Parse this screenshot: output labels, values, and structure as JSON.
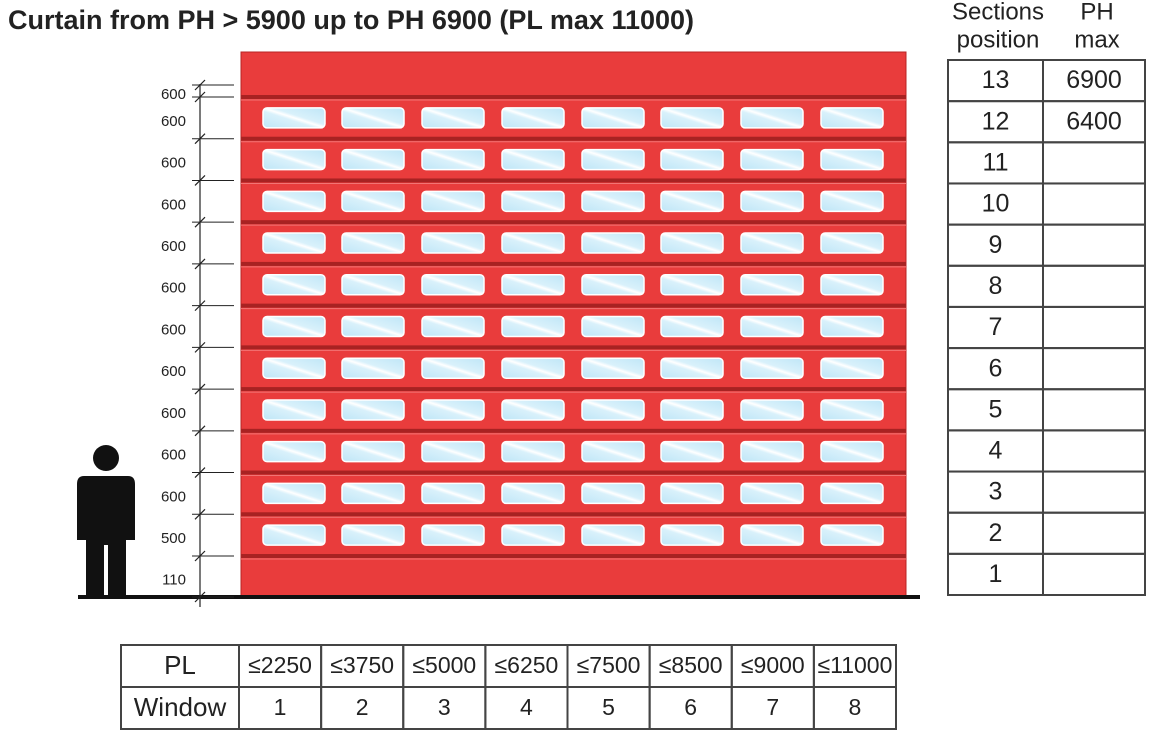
{
  "title": "Curtain from PH > 5900 up to PH 6900 (PL max 11000)",
  "dimensions": [
    "600",
    "600",
    "600",
    "600",
    "600",
    "600",
    "600",
    "600",
    "600",
    "600",
    "600",
    "500",
    "110"
  ],
  "sections_table": {
    "headers": [
      [
        "Sections",
        "position"
      ],
      [
        "PH",
        "max"
      ]
    ],
    "rows": [
      [
        "13",
        "6900"
      ],
      [
        "12",
        "6400"
      ],
      [
        "11"
      ],
      [
        "10"
      ],
      [
        "9"
      ],
      [
        "8"
      ],
      [
        "7"
      ],
      [
        "6"
      ],
      [
        "5"
      ],
      [
        "4"
      ],
      [
        "3"
      ],
      [
        "2"
      ],
      [
        "1"
      ]
    ]
  },
  "pl_table": {
    "rows": [
      [
        "PL",
        "≤2250",
        "≤3750",
        "≤5000",
        "≤6250",
        "≤7500",
        "≤8500",
        "≤9000",
        "≤11000"
      ],
      [
        "Window",
        "1",
        "2",
        "3",
        "4",
        "5",
        "6",
        "7",
        "8"
      ]
    ]
  }
}
